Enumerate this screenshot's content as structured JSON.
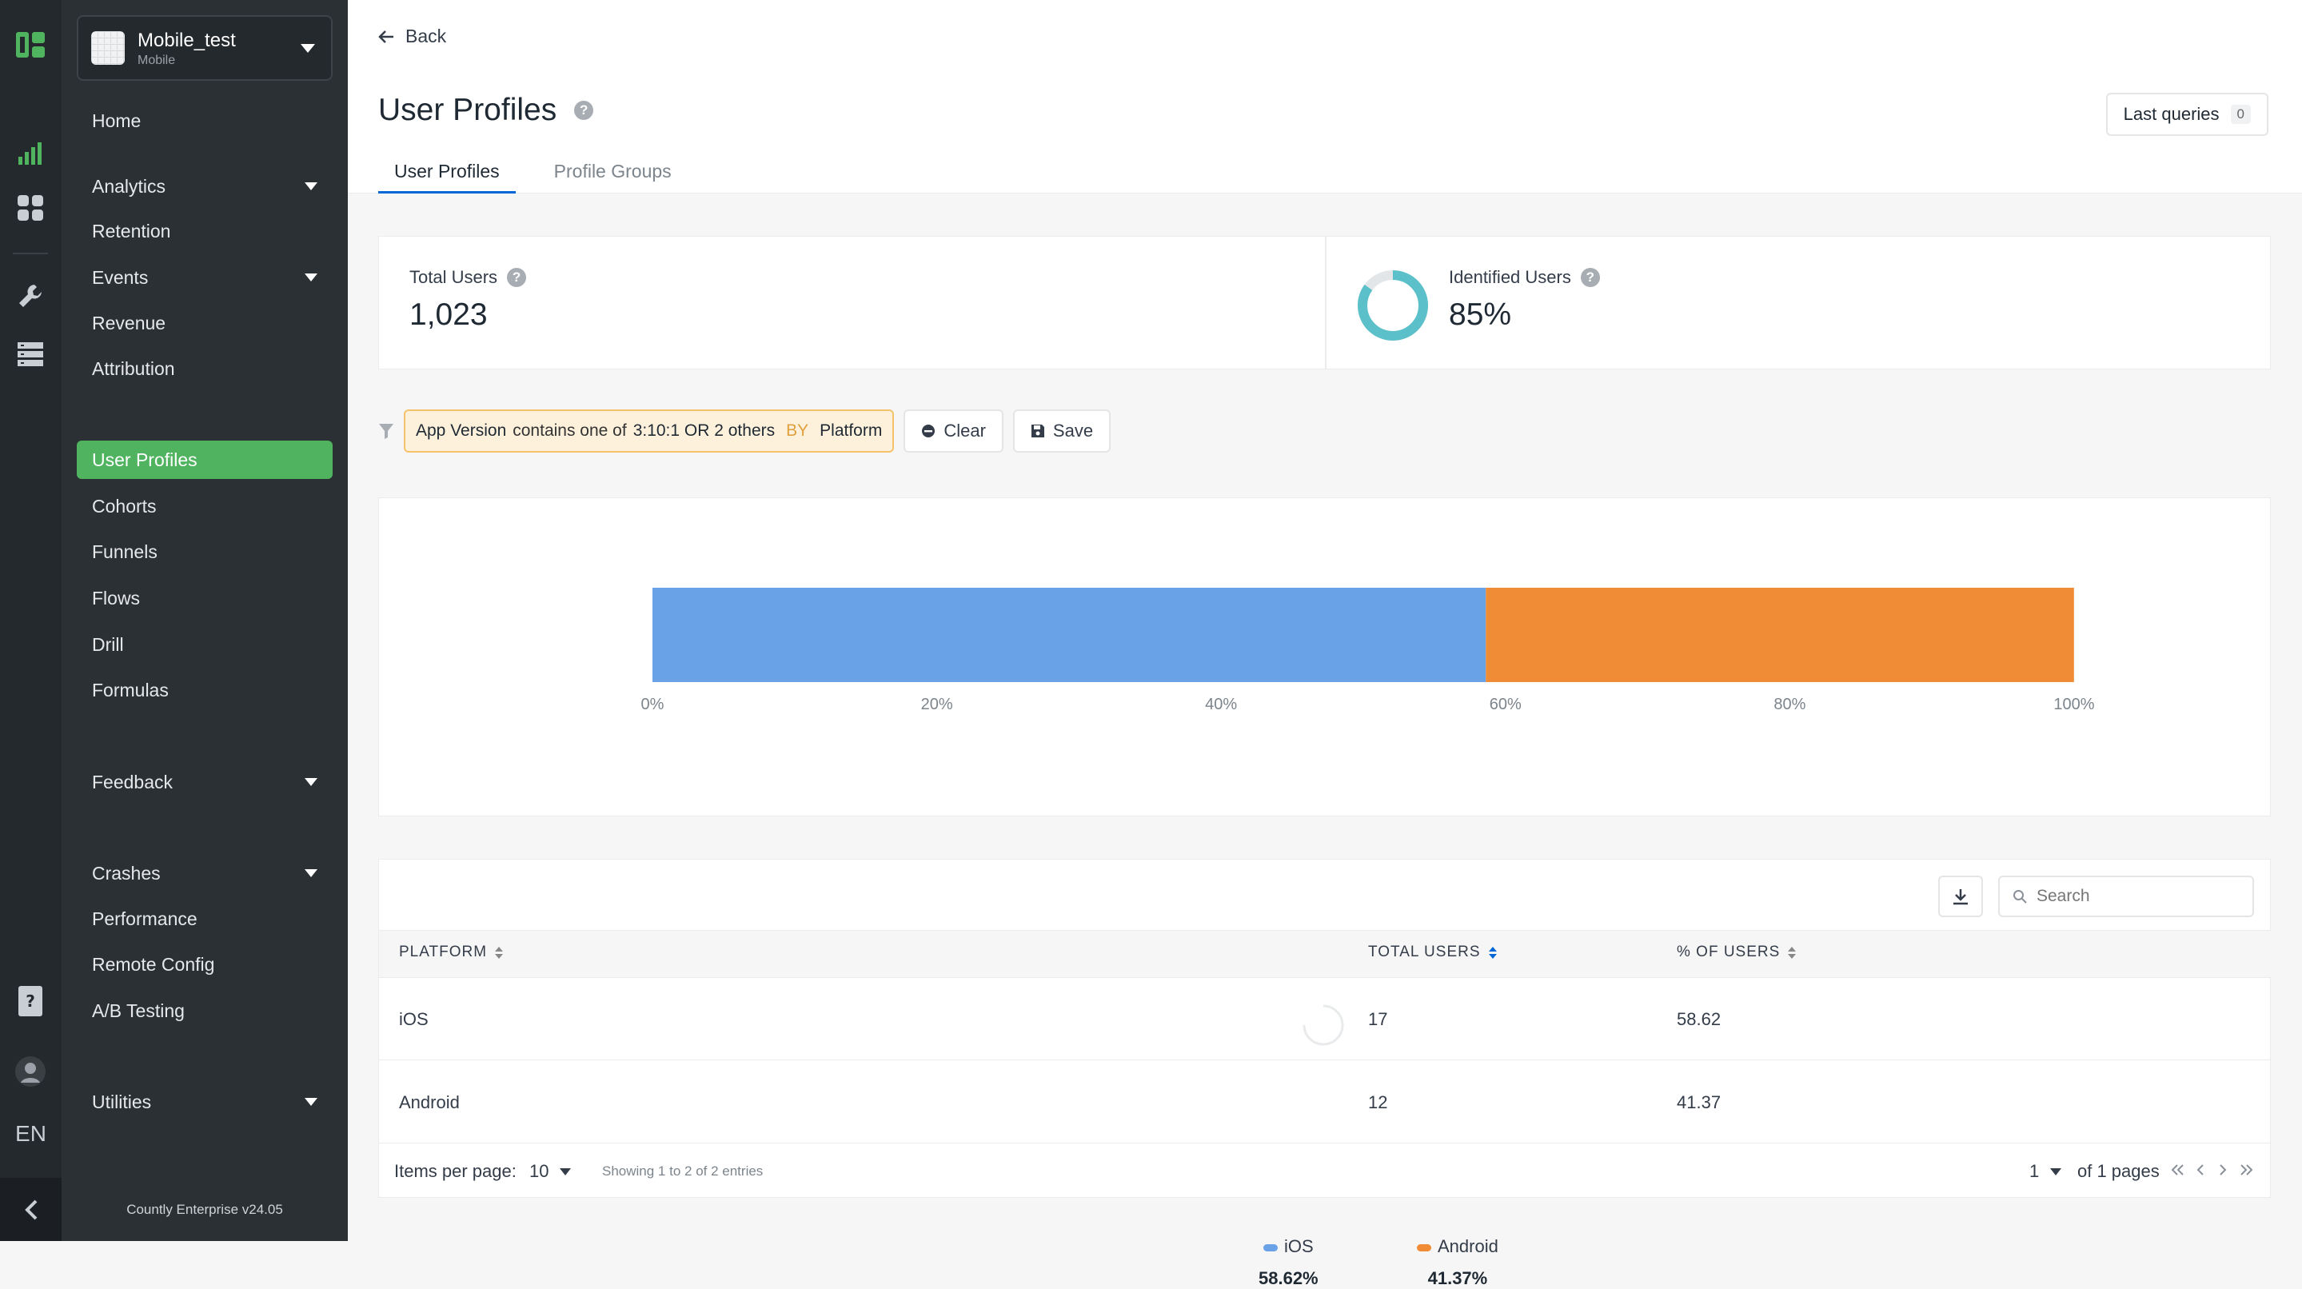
{
  "app": {
    "name": "Mobile_test",
    "type": "Mobile"
  },
  "rail": {
    "language": "EN"
  },
  "sidebar": {
    "items": [
      {
        "label": "Home"
      },
      {
        "label": "Analytics"
      },
      {
        "label": "Retention"
      },
      {
        "label": "Events"
      },
      {
        "label": "Revenue"
      },
      {
        "label": "Attribution"
      },
      {
        "label": "User Profiles"
      },
      {
        "label": "Cohorts"
      },
      {
        "label": "Funnels"
      },
      {
        "label": "Flows"
      },
      {
        "label": "Drill"
      },
      {
        "label": "Formulas"
      },
      {
        "label": "Feedback"
      },
      {
        "label": "Crashes"
      },
      {
        "label": "Performance"
      },
      {
        "label": "Remote Config"
      },
      {
        "label": "A/B Testing"
      },
      {
        "label": "Utilities"
      }
    ],
    "version": "Countly Enterprise v24.05"
  },
  "header": {
    "back_label": "Back",
    "title": "User Profiles",
    "last_queries_label": "Last queries",
    "last_queries_count": "0",
    "tabs": [
      {
        "label": "User Profiles"
      },
      {
        "label": "Profile Groups"
      }
    ]
  },
  "stats": {
    "total_users_label": "Total Users",
    "total_users_value": "1,023",
    "identified_users_label": "Identified Users",
    "identified_users_value": "85%",
    "identified_fraction": 0.85
  },
  "filter": {
    "property": "App Version",
    "operator": "contains one of",
    "value": "3:10:1 OR 2 others",
    "by_label": "BY",
    "by_value": "Platform",
    "clear_label": "Clear",
    "save_label": "Save"
  },
  "chart_data": {
    "type": "bar",
    "orientation": "horizontal-stacked-100",
    "series": [
      {
        "name": "iOS",
        "value": 58.62,
        "label": "58.62%",
        "color": "#6aa2e8"
      },
      {
        "name": "Android",
        "value": 41.37,
        "label": "41.37%",
        "color": "#f08c36"
      }
    ],
    "ticks": [
      "0%",
      "20%",
      "40%",
      "60%",
      "80%",
      "100%"
    ],
    "xlim": [
      0,
      100
    ]
  },
  "table": {
    "search_placeholder": "Search",
    "columns": [
      "PLATFORM",
      "TOTAL USERS",
      "% OF USERS"
    ],
    "rows": [
      {
        "platform": "iOS",
        "total_users": "17",
        "pct_users": "58.62"
      },
      {
        "platform": "Android",
        "total_users": "12",
        "pct_users": "41.37"
      }
    ],
    "items_per_page_label": "Items per page:",
    "items_per_page_value": "10",
    "showing_text": "Showing 1 to 2 of 2 entries",
    "page_value": "1",
    "of_pages_text": "of 1 pages"
  },
  "colors": {
    "accent_green": "#4fb35f",
    "tab_blue": "#0166d6",
    "ios": "#6aa2e8",
    "android": "#f08c36",
    "donut": "#5bc0c9"
  }
}
